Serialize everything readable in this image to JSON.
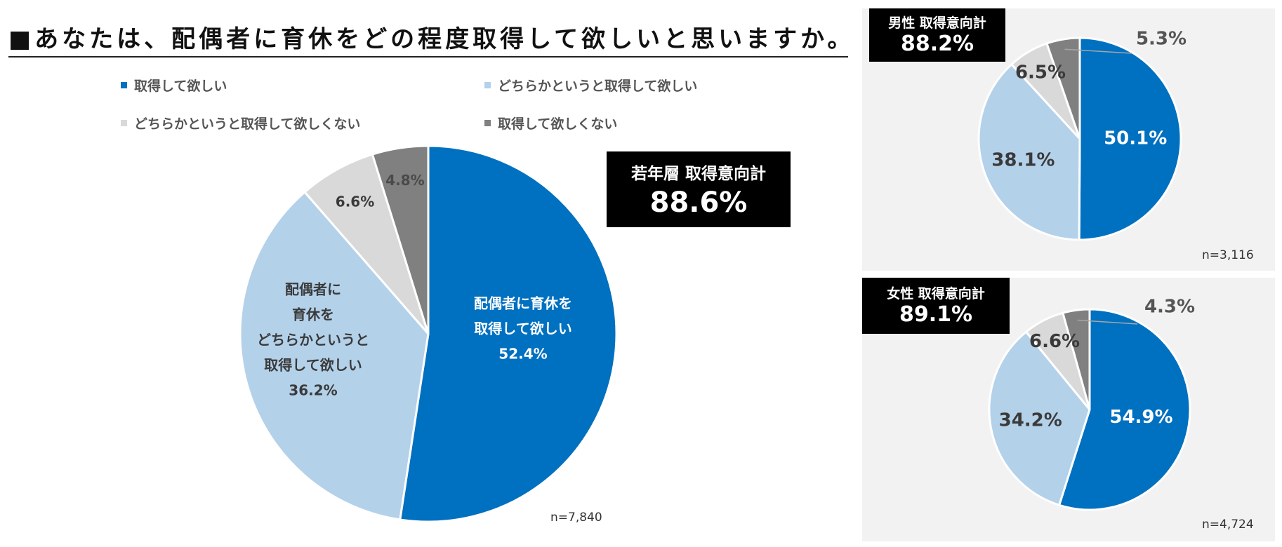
{
  "title": "■あなたは、配偶者に育休をどの程度取得して欲しいと思いますか。",
  "legend": [
    {
      "label": "取得して欲しい",
      "color": "#0070c0"
    },
    {
      "label": "どちらかというと取得して欲しい",
      "color": "#b4d1ea"
    },
    {
      "label": "どちらかというと取得して欲しくない",
      "color": "#d9d9d9"
    },
    {
      "label": "取得して欲しくない",
      "color": "#808080"
    }
  ],
  "chart_data": [
    {
      "type": "pie",
      "group": "若年層",
      "badge_label": "若年層 取得意向計",
      "badge_value": "88.6%",
      "n": "n=7,840",
      "categories": [
        "取得して欲しい",
        "どちらかというと取得して欲しい",
        "どちらかというと取得して欲しくない",
        "取得して欲しくない"
      ],
      "values": [
        52.4,
        36.2,
        6.6,
        4.8
      ],
      "slice_labels": [
        [
          "配偶者に育休を",
          "取得して欲しい",
          "52.4%"
        ],
        [
          "配偶者に",
          "育休を",
          "どちらかというと",
          "取得して欲しい",
          "36.2%"
        ],
        [
          "6.6%"
        ],
        [
          "4.8%"
        ]
      ]
    },
    {
      "type": "pie",
      "group": "男性",
      "badge_label": "男性 取得意向計",
      "badge_value": "88.2%",
      "n": "n=3,116",
      "categories": [
        "取得して欲しい",
        "どちらかというと取得して欲しい",
        "どちらかというと取得して欲しくない",
        "取得して欲しくない"
      ],
      "values": [
        50.1,
        38.1,
        6.5,
        5.3
      ],
      "slice_labels": [
        [
          "50.1%"
        ],
        [
          "38.1%"
        ],
        [
          "6.5%"
        ],
        [
          "5.3%"
        ]
      ]
    },
    {
      "type": "pie",
      "group": "女性",
      "badge_label": "女性 取得意向計",
      "badge_value": "89.1%",
      "n": "n=4,724",
      "categories": [
        "取得して欲しい",
        "どちらかというと取得して欲しい",
        "どちらかというと取得して欲しくない",
        "取得して欲しくない"
      ],
      "values": [
        54.9,
        34.2,
        6.6,
        4.3
      ],
      "slice_labels": [
        [
          "54.9%"
        ],
        [
          "34.2%"
        ],
        [
          "6.6%"
        ],
        [
          "4.3%"
        ]
      ]
    }
  ]
}
